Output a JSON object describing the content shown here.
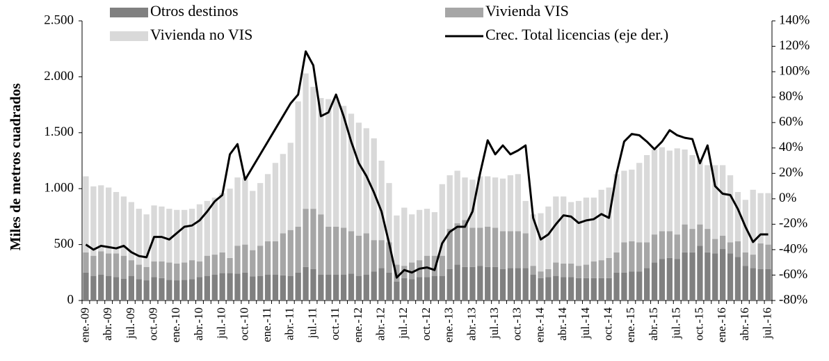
{
  "chart_data": {
    "type": "bar",
    "stacked": true,
    "ylabel": "Miles de metros cuadrados",
    "categories": [
      "ene.-09",
      null,
      null,
      "abr.-09",
      null,
      null,
      "jul.-09",
      null,
      null,
      "oct.-09",
      null,
      null,
      "ene.-10",
      null,
      null,
      "abr.-10",
      null,
      null,
      "jul.-10",
      null,
      null,
      "oct.-10",
      null,
      null,
      "ene.-11",
      null,
      null,
      "abr.-11",
      null,
      null,
      "jul.-11",
      null,
      null,
      "oct.-11",
      null,
      null,
      "ene.-12",
      null,
      null,
      "abr.-12",
      null,
      null,
      "jul.-12",
      null,
      null,
      "oct.-12",
      null,
      null,
      "ene.-13",
      null,
      null,
      "abr.-13",
      null,
      null,
      "jul.-13",
      null,
      null,
      "oct.-13",
      null,
      null,
      "ene.-14",
      null,
      null,
      "abr.-14",
      null,
      null,
      "jul.-14",
      null,
      null,
      "oct.-14",
      null,
      null,
      "ene.-15",
      null,
      null,
      "abr.-15",
      null,
      null,
      "jul.-15",
      null,
      null,
      "oct.-15",
      null,
      null,
      "ene.-16",
      null,
      null,
      "abr.-16",
      null,
      null,
      "jul.-16"
    ],
    "series": [
      {
        "name": "Otros destinos",
        "color": "#808080",
        "values": [
          250,
          220,
          230,
          220,
          210,
          195,
          220,
          190,
          180,
          210,
          200,
          185,
          180,
          185,
          190,
          210,
          220,
          230,
          245,
          245,
          240,
          250,
          215,
          220,
          230,
          230,
          225,
          220,
          250,
          300,
          280,
          230,
          230,
          230,
          230,
          240,
          220,
          230,
          260,
          290,
          250,
          170,
          200,
          190,
          210,
          210,
          220,
          220,
          280,
          320,
          300,
          300,
          310,
          300,
          300,
          280,
          290,
          290,
          290,
          230,
          200,
          210,
          220,
          210,
          210,
          200,
          200,
          200,
          200,
          200,
          250,
          250,
          260,
          260,
          290,
          340,
          370,
          380,
          370,
          430,
          430,
          490,
          430,
          420,
          460,
          420,
          390,
          310,
          290,
          280,
          280
        ]
      },
      {
        "name": "Vivienda VIS",
        "color": "#a6a6a6",
        "values": [
          180,
          180,
          210,
          200,
          210,
          205,
          140,
          130,
          120,
          140,
          150,
          155,
          150,
          155,
          170,
          140,
          180,
          180,
          185,
          135,
          250,
          250,
          235,
          270,
          300,
          300,
          375,
          410,
          410,
          520,
          540,
          540,
          430,
          430,
          420,
          380,
          360,
          370,
          280,
          250,
          270,
          150,
          110,
          150,
          150,
          190,
          180,
          180,
          360,
          370,
          420,
          350,
          340,
          360,
          350,
          340,
          330,
          330,
          310,
          80,
          60,
          70,
          120,
          120,
          120,
          110,
          120,
          150,
          160,
          180,
          180,
          270,
          270,
          260,
          230,
          250,
          250,
          240,
          220,
          250,
          210,
          190,
          210,
          130,
          120,
          100,
          140,
          120,
          120,
          230,
          220
        ]
      },
      {
        "name": "Vivienda no VIS",
        "color": "#d9d9d9",
        "values": [
          680,
          620,
          590,
          590,
          550,
          530,
          520,
          500,
          470,
          500,
          490,
          480,
          480,
          470,
          460,
          510,
          490,
          510,
          530,
          620,
          610,
          600,
          530,
          560,
          600,
          700,
          710,
          780,
          1120,
          1210,
          1090,
          1040,
          1140,
          1150,
          1090,
          1050,
          1010,
          940,
          910,
          710,
          530,
          440,
          520,
          430,
          450,
          420,
          390,
          640,
          480,
          470,
          380,
          430,
          460,
          450,
          450,
          470,
          500,
          510,
          290,
          460,
          520,
          560,
          590,
          600,
          550,
          580,
          600,
          570,
          630,
          630,
          700,
          640,
          640,
          710,
          780,
          760,
          750,
          720,
          770,
          670,
          660,
          570,
          570,
          660,
          630,
          600,
          440,
          470,
          580,
          450,
          460
        ]
      },
      {
        "name": "Crec. Total licencias (eje der.)",
        "color": "#000000",
        "type": "line",
        "axis": "y2",
        "values": [
          -36,
          -40,
          -37,
          -38,
          -39,
          -37,
          -42,
          -45,
          -46,
          -30,
          -30,
          -32,
          -27,
          -22,
          -21,
          -17,
          -10,
          -2,
          3,
          35,
          43,
          15,
          25,
          35,
          45,
          55,
          65,
          75,
          82,
          116,
          105,
          65,
          68,
          82,
          65,
          45,
          28,
          18,
          5,
          -10,
          -35,
          -62,
          -56,
          -58,
          -55,
          -54,
          -56,
          -35,
          -26,
          -22,
          -22,
          -10,
          20,
          46,
          35,
          42,
          35,
          38,
          42,
          -15,
          -32,
          -28,
          -20,
          -13,
          -14,
          -19,
          -17,
          -16,
          -12,
          -15,
          20,
          45,
          51,
          50,
          45,
          39,
          45,
          54,
          50,
          48,
          47,
          28,
          42,
          10,
          4,
          3,
          -8,
          -22,
          -34,
          -28,
          -28
        ]
      }
    ],
    "ylim": [
      0,
      2500
    ],
    "yticks": [
      0,
      {
        "value": 500,
        "label": "500"
      },
      {
        "value": 1000,
        "label": "1.000"
      },
      {
        "value": 1500,
        "label": "1.500"
      },
      {
        "value": 2000,
        "label": "2.000"
      },
      {
        "value": 2500,
        "label": "2.500"
      }
    ],
    "y2lim": [
      -80,
      140
    ],
    "y2ticks": [
      {
        "value": -80,
        "label": "-80%"
      },
      {
        "value": -60,
        "label": "-60%"
      },
      {
        "value": -40,
        "label": "-40%"
      },
      {
        "value": -20,
        "label": "-20%"
      },
      {
        "value": 0,
        "label": "0%"
      },
      {
        "value": 20,
        "label": "20%"
      },
      {
        "value": 40,
        "label": "40%"
      },
      {
        "value": 60,
        "label": "60%"
      },
      {
        "value": 80,
        "label": "80%"
      },
      {
        "value": 100,
        "label": "100%"
      },
      {
        "value": 120,
        "label": "120%"
      },
      {
        "value": 140,
        "label": "140%"
      }
    ],
    "grid": false,
    "legend": "top"
  }
}
